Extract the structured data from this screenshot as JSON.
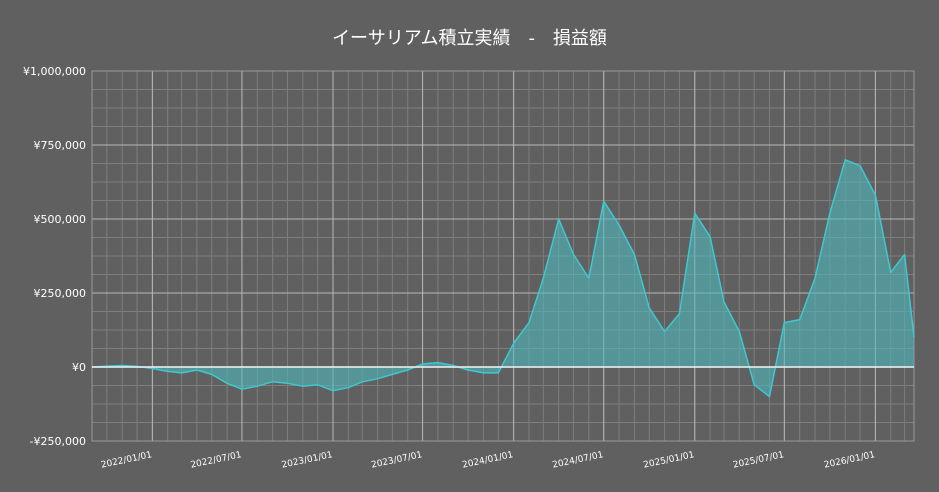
{
  "chart_data": {
    "type": "area",
    "title": "イーサリアム積立実績　-　損益額",
    "xlabel": "",
    "ylabel": "",
    "x_range": [
      "2021/09/01",
      "2026/03/20"
    ],
    "ylim": [
      -250000,
      1000000
    ],
    "y_ticks": [
      -250000,
      0,
      250000,
      500000,
      750000,
      1000000
    ],
    "y_tick_labels": [
      "-¥250,000",
      "¥0",
      "¥250,000",
      "¥500,000",
      "¥750,000",
      "¥1,000,000"
    ],
    "x_ticks": [
      "2022/01/01",
      "2022/07/01",
      "2023/01/01",
      "2023/07/01",
      "2024/01/01",
      "2024/07/01",
      "2025/01/01",
      "2025/07/01",
      "2026/01/01"
    ],
    "grid": true,
    "colors": {
      "background": "#606060",
      "line": "#3fc8d0",
      "fill": "#4fb8bc",
      "grid": "#8a8a8a",
      "zero_line": "#ffffff"
    },
    "series": [
      {
        "x": [
          "2021/09/01",
          "2021/10/01",
          "2021/11/01",
          "2021/12/01",
          "2022/01/01",
          "2022/02/01",
          "2022/03/01",
          "2022/04/01",
          "2022/05/01",
          "2022/06/01",
          "2022/07/01",
          "2022/08/01",
          "2022/09/01",
          "2022/10/01",
          "2022/11/01",
          "2022/12/01",
          "2023/01/01",
          "2023/02/01",
          "2023/03/01",
          "2023/04/01",
          "2023/05/01",
          "2023/06/01",
          "2023/07/01",
          "2023/08/01",
          "2023/09/01",
          "2023/10/01",
          "2023/11/01",
          "2023/12/01",
          "2024/01/01",
          "2024/02/01",
          "2024/03/01",
          "2024/04/01",
          "2024/05/01",
          "2024/06/01",
          "2024/07/01",
          "2024/08/01",
          "2024/09/01",
          "2024/10/01",
          "2024/11/01",
          "2024/12/01",
          "2025/01/01",
          "2025/02/01",
          "2025/03/01",
          "2025/04/01",
          "2025/05/01",
          "2025/06/01",
          "2025/07/01",
          "2025/08/01",
          "2025/09/01",
          "2025/10/01",
          "2025/11/01",
          "2025/12/01",
          "2026/01/01",
          "2026/02/01",
          "2026/03/01",
          "2026/03/20"
        ],
        "values": [
          0,
          3000,
          5000,
          2000,
          -5000,
          -15000,
          -20000,
          -10000,
          -25000,
          -55000,
          -75000,
          -65000,
          -50000,
          -55000,
          -65000,
          -60000,
          -80000,
          -70000,
          -50000,
          -40000,
          -25000,
          -10000,
          10000,
          15000,
          5000,
          -10000,
          -20000,
          -20000,
          80000,
          150000,
          300000,
          500000,
          380000,
          300000,
          560000,
          480000,
          380000,
          200000,
          120000,
          180000,
          520000,
          440000,
          220000,
          120000,
          -60000,
          -100000,
          150000,
          160000,
          300000,
          520000,
          700000,
          680000,
          580000,
          320000,
          380000,
          100000
        ]
      }
    ]
  }
}
